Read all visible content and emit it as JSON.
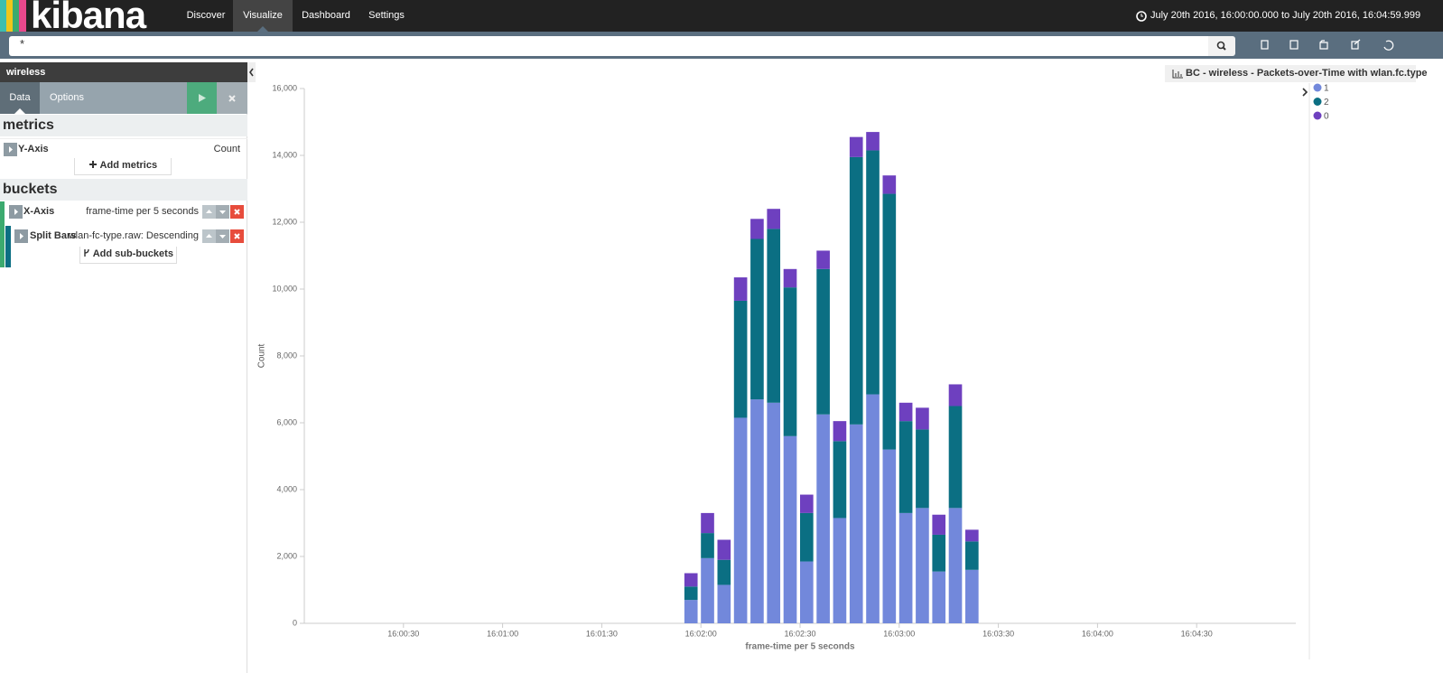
{
  "nav": {
    "brand": "kibana",
    "items": [
      "Discover",
      "Visualize",
      "Dashboard",
      "Settings"
    ],
    "time_range": "July 20th 2016, 16:00:00.000 to July 20th 2016, 16:04:59.999"
  },
  "query": "*",
  "sidebar": {
    "title": "wireless",
    "tabs": [
      "Data",
      "Options"
    ],
    "metrics_heading": "metrics",
    "y_axis": {
      "label": "Y-Axis",
      "value": "Count"
    },
    "add_metrics": "Add metrics",
    "buckets_heading": "buckets",
    "x_axis": {
      "label": "X-Axis",
      "value": "frame-time per 5 seconds"
    },
    "split": {
      "label": "Split Bars",
      "value": "wlan-fc-type.raw: Descending"
    },
    "add_sub_buckets": "Add sub-buckets"
  },
  "chart_data": {
    "type": "stacked-bar",
    "title": "BC - wireless - Packets-over-Time with wlan.fc.type",
    "xlabel": "frame-time per 5 seconds",
    "ylabel": "Count",
    "x": [
      "16:01:55",
      "16:02:00",
      "16:02:05",
      "16:02:10",
      "16:02:15",
      "16:02:20",
      "16:02:25",
      "16:02:30",
      "16:02:35",
      "16:02:40",
      "16:02:45",
      "16:02:50",
      "16:02:55",
      "16:03:00",
      "16:03:05",
      "16:03:10",
      "16:03:15",
      "16:03:20"
    ],
    "series": [
      {
        "name": "1",
        "color": "#7288db",
        "values": [
          700,
          1950,
          1150,
          6150,
          6700,
          6600,
          5600,
          1850,
          6250,
          3150,
          5950,
          6850,
          5200,
          3300,
          3450,
          1550,
          3450,
          1600
        ]
      },
      {
        "name": "2",
        "color": "#0b6f83",
        "values": [
          400,
          750,
          750,
          3500,
          4800,
          5200,
          4450,
          1450,
          4350,
          2300,
          8000,
          7300,
          7650,
          2750,
          2350,
          1100,
          3050,
          850
        ]
      },
      {
        "name": "0",
        "color": "#6e40bf",
        "values": [
          400,
          600,
          600,
          700,
          600,
          600,
          550,
          550,
          550,
          600,
          600,
          550,
          550,
          550,
          650,
          600,
          650,
          350
        ]
      }
    ],
    "xlim": [
      "16:00:00",
      "16:05:00"
    ],
    "xticks": [
      "16:00:30",
      "16:01:00",
      "16:01:30",
      "16:02:00",
      "16:02:30",
      "16:03:00",
      "16:03:30",
      "16:04:00",
      "16:04:30"
    ],
    "ylim": [
      0,
      16000
    ],
    "yticks": [
      0,
      {
        "value": 2000,
        "label": "2,000"
      },
      {
        "value": 4000,
        "label": "4,000"
      },
      {
        "value": 6000,
        "label": "6,000"
      },
      {
        "value": 8000,
        "label": "8,000"
      },
      {
        "value": 10000,
        "label": "10,000"
      },
      {
        "value": 12000,
        "label": "12,000"
      },
      {
        "value": 14000,
        "label": "14,000"
      },
      {
        "value": 16000,
        "label": "16,000"
      }
    ],
    "legend": "top-right"
  }
}
